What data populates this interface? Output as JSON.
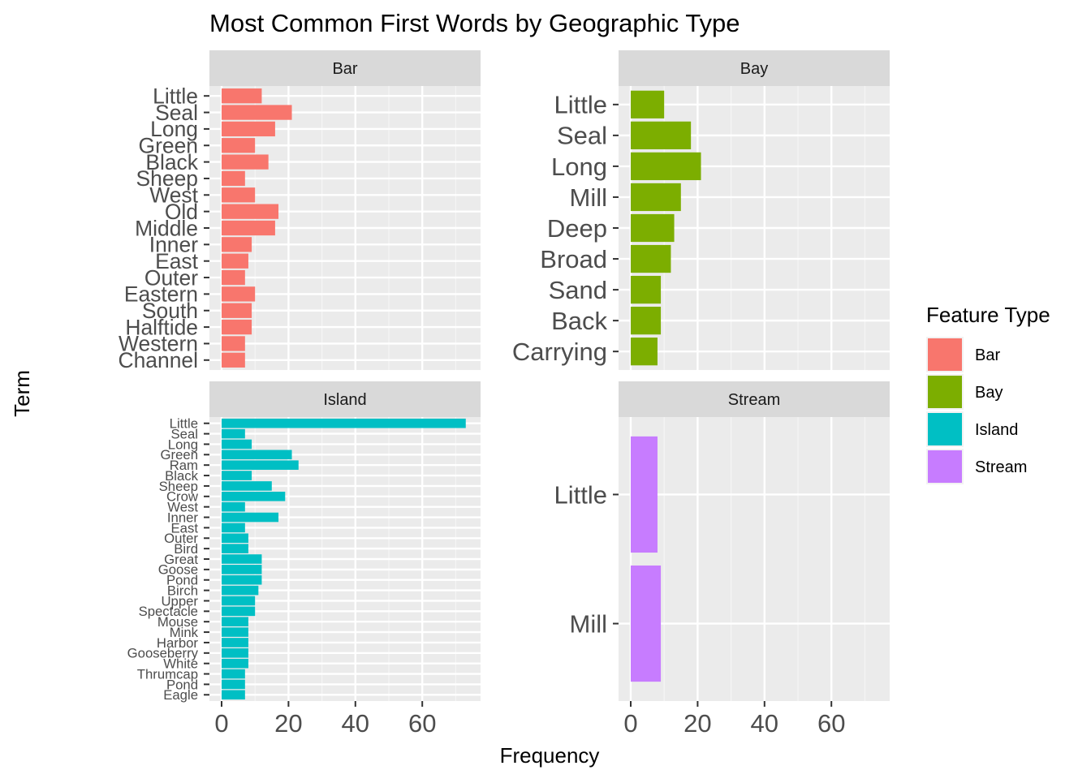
{
  "chart_data": {
    "type": "bar",
    "orientation": "horizontal",
    "title": "Most Common First Words by Geographic Type",
    "xlabel": "Frequency",
    "ylabel": "Term",
    "xlim": [
      0,
      75
    ],
    "xticks": [
      0,
      20,
      40,
      60
    ],
    "grid": true,
    "legend": {
      "title": "Feature Type",
      "position": "right",
      "entries": [
        {
          "label": "Bar",
          "color": "#F8766D"
        },
        {
          "label": "Bay",
          "color": "#7CAE00"
        },
        {
          "label": "Island",
          "color": "#00BFC4"
        },
        {
          "label": "Stream",
          "color": "#C77CFF"
        }
      ]
    },
    "panels": [
      {
        "name": "Bar",
        "color": "#F8766D",
        "categories": [
          "Little",
          "Seal",
          "Long",
          "Green",
          "Black",
          "Sheep",
          "West",
          "Old",
          "Middle",
          "Inner",
          "East",
          "Outer",
          "Eastern",
          "South",
          "Halftide",
          "Western",
          "Channel"
        ],
        "values": [
          12,
          21,
          16,
          10,
          14,
          7,
          10,
          17,
          16,
          9,
          8,
          7,
          10,
          9,
          9,
          7,
          7
        ]
      },
      {
        "name": "Bay",
        "color": "#7CAE00",
        "categories": [
          "Little",
          "Seal",
          "Long",
          "Mill",
          "Deep",
          "Broad",
          "Sand",
          "Back",
          "Carrying"
        ],
        "values": [
          10,
          18,
          21,
          15,
          13,
          12,
          9,
          9,
          8
        ]
      },
      {
        "name": "Island",
        "color": "#00BFC4",
        "categories": [
          "Little",
          "Seal",
          "Long",
          "Green",
          "Ram",
          "Black",
          "Sheep",
          "Crow",
          "West",
          "Inner",
          "East",
          "Outer",
          "Bird",
          "Great",
          "Goose",
          "Pond",
          "Birch",
          "Upper",
          "Spectacle",
          "Mouse",
          "Mink",
          "Harbor",
          "Gooseberry",
          "White",
          "Thrumcap",
          "Pond",
          "Eagle"
        ],
        "values": [
          73,
          7,
          9,
          21,
          23,
          9,
          15,
          19,
          7,
          17,
          7,
          8,
          8,
          12,
          12,
          12,
          11,
          10,
          10,
          8,
          8,
          8,
          8,
          8,
          7,
          7,
          7
        ]
      },
      {
        "name": "Stream",
        "color": "#C77CFF",
        "categories": [
          "Little",
          "Mill"
        ],
        "values": [
          8,
          9
        ]
      }
    ]
  }
}
